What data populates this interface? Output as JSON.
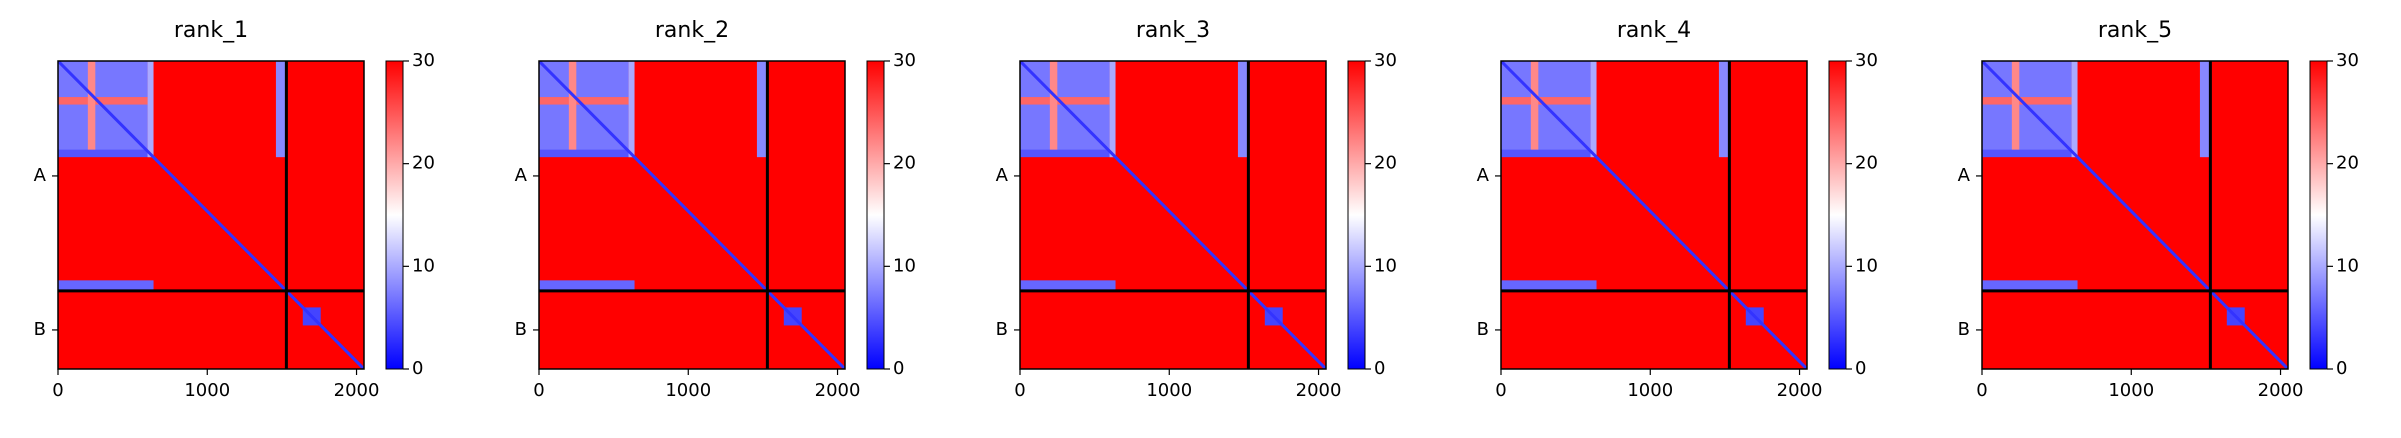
{
  "chart_data": [
    {
      "type": "heatmap",
      "title": "rank_1",
      "xlim": [
        0,
        2050
      ],
      "ylim": [
        2050,
        0
      ],
      "xticks": [
        0,
        1000,
        2000
      ],
      "yticks": [
        {
          "value": 765,
          "label": "A"
        },
        {
          "value": 1790,
          "label": "B"
        }
      ],
      "chain_breaks": [
        1530
      ],
      "colormap": "bwr",
      "clim": [
        0,
        30
      ],
      "cticks": [
        0,
        10,
        20,
        30
      ],
      "background_value": 30,
      "diagonal_value": 3,
      "blocks": [
        {
          "x": [
            0,
            600
          ],
          "y": [
            0,
            600
          ],
          "value": 7
        },
        {
          "x": [
            0,
            600
          ],
          "y": [
            240,
            290
          ],
          "value": 24
        },
        {
          "x": [
            200,
            250
          ],
          "y": [
            0,
            600
          ],
          "value": 22
        },
        {
          "x": [
            0,
            640
          ],
          "y": [
            590,
            640
          ],
          "value": 5
        },
        {
          "x": [
            600,
            640
          ],
          "y": [
            0,
            640
          ],
          "value": 10
        },
        {
          "x": [
            1460,
            1530
          ],
          "y": [
            0,
            640
          ],
          "value": 8
        },
        {
          "x": [
            0,
            640
          ],
          "y": [
            1460,
            1530
          ],
          "value": 6
        },
        {
          "x": [
            1640,
            1760
          ],
          "y": [
            1640,
            1760
          ],
          "value": 4
        }
      ]
    },
    {
      "type": "heatmap",
      "title": "rank_2",
      "xlim": [
        0,
        2050
      ],
      "ylim": [
        2050,
        0
      ],
      "xticks": [
        0,
        1000,
        2000
      ],
      "yticks": [
        {
          "value": 765,
          "label": "A"
        },
        {
          "value": 1790,
          "label": "B"
        }
      ],
      "chain_breaks": [
        1530
      ],
      "colormap": "bwr",
      "clim": [
        0,
        30
      ],
      "cticks": [
        0,
        10,
        20,
        30
      ],
      "background_value": 30,
      "diagonal_value": 3,
      "blocks": [
        {
          "x": [
            0,
            600
          ],
          "y": [
            0,
            600
          ],
          "value": 7
        },
        {
          "x": [
            0,
            600
          ],
          "y": [
            240,
            290
          ],
          "value": 24
        },
        {
          "x": [
            200,
            250
          ],
          "y": [
            0,
            600
          ],
          "value": 22
        },
        {
          "x": [
            0,
            640
          ],
          "y": [
            590,
            640
          ],
          "value": 5
        },
        {
          "x": [
            600,
            640
          ],
          "y": [
            0,
            640
          ],
          "value": 10
        },
        {
          "x": [
            1460,
            1530
          ],
          "y": [
            0,
            640
          ],
          "value": 8
        },
        {
          "x": [
            0,
            640
          ],
          "y": [
            1460,
            1530
          ],
          "value": 6
        },
        {
          "x": [
            1640,
            1760
          ],
          "y": [
            1640,
            1760
          ],
          "value": 4
        }
      ]
    },
    {
      "type": "heatmap",
      "title": "rank_3",
      "xlim": [
        0,
        2050
      ],
      "ylim": [
        2050,
        0
      ],
      "xticks": [
        0,
        1000,
        2000
      ],
      "yticks": [
        {
          "value": 765,
          "label": "A"
        },
        {
          "value": 1790,
          "label": "B"
        }
      ],
      "chain_breaks": [
        1530
      ],
      "colormap": "bwr",
      "clim": [
        0,
        30
      ],
      "cticks": [
        0,
        10,
        20,
        30
      ],
      "background_value": 30,
      "diagonal_value": 3,
      "blocks": [
        {
          "x": [
            0,
            600
          ],
          "y": [
            0,
            600
          ],
          "value": 7
        },
        {
          "x": [
            0,
            600
          ],
          "y": [
            240,
            290
          ],
          "value": 24
        },
        {
          "x": [
            200,
            250
          ],
          "y": [
            0,
            600
          ],
          "value": 22
        },
        {
          "x": [
            0,
            640
          ],
          "y": [
            590,
            640
          ],
          "value": 5
        },
        {
          "x": [
            600,
            640
          ],
          "y": [
            0,
            640
          ],
          "value": 10
        },
        {
          "x": [
            1460,
            1530
          ],
          "y": [
            0,
            640
          ],
          "value": 8
        },
        {
          "x": [
            0,
            640
          ],
          "y": [
            1460,
            1530
          ],
          "value": 6
        },
        {
          "x": [
            1640,
            1760
          ],
          "y": [
            1640,
            1760
          ],
          "value": 4
        }
      ]
    },
    {
      "type": "heatmap",
      "title": "rank_4",
      "xlim": [
        0,
        2050
      ],
      "ylim": [
        2050,
        0
      ],
      "xticks": [
        0,
        1000,
        2000
      ],
      "yticks": [
        {
          "value": 765,
          "label": "A"
        },
        {
          "value": 1790,
          "label": "B"
        }
      ],
      "chain_breaks": [
        1530
      ],
      "colormap": "bwr",
      "clim": [
        0,
        30
      ],
      "cticks": [
        0,
        10,
        20,
        30
      ],
      "background_value": 30,
      "diagonal_value": 3,
      "blocks": [
        {
          "x": [
            0,
            600
          ],
          "y": [
            0,
            600
          ],
          "value": 7
        },
        {
          "x": [
            0,
            600
          ],
          "y": [
            240,
            290
          ],
          "value": 24
        },
        {
          "x": [
            200,
            250
          ],
          "y": [
            0,
            600
          ],
          "value": 22
        },
        {
          "x": [
            0,
            640
          ],
          "y": [
            590,
            640
          ],
          "value": 5
        },
        {
          "x": [
            600,
            640
          ],
          "y": [
            0,
            640
          ],
          "value": 10
        },
        {
          "x": [
            1460,
            1530
          ],
          "y": [
            0,
            640
          ],
          "value": 8
        },
        {
          "x": [
            0,
            640
          ],
          "y": [
            1460,
            1530
          ],
          "value": 6
        },
        {
          "x": [
            1640,
            1760
          ],
          "y": [
            1640,
            1760
          ],
          "value": 4
        }
      ]
    },
    {
      "type": "heatmap",
      "title": "rank_5",
      "xlim": [
        0,
        2050
      ],
      "ylim": [
        2050,
        0
      ],
      "xticks": [
        0,
        1000,
        2000
      ],
      "yticks": [
        {
          "value": 765,
          "label": "A"
        },
        {
          "value": 1790,
          "label": "B"
        }
      ],
      "chain_breaks": [
        1530
      ],
      "colormap": "bwr",
      "clim": [
        0,
        30
      ],
      "cticks": [
        0,
        10,
        20,
        30
      ],
      "background_value": 30,
      "diagonal_value": 3,
      "blocks": [
        {
          "x": [
            0,
            600
          ],
          "y": [
            0,
            600
          ],
          "value": 7
        },
        {
          "x": [
            0,
            600
          ],
          "y": [
            240,
            290
          ],
          "value": 24
        },
        {
          "x": [
            200,
            250
          ],
          "y": [
            0,
            600
          ],
          "value": 22
        },
        {
          "x": [
            0,
            640
          ],
          "y": [
            590,
            640
          ],
          "value": 5
        },
        {
          "x": [
            600,
            640
          ],
          "y": [
            0,
            640
          ],
          "value": 10
        },
        {
          "x": [
            1460,
            1530
          ],
          "y": [
            0,
            640
          ],
          "value": 8
        },
        {
          "x": [
            0,
            640
          ],
          "y": [
            1460,
            1530
          ],
          "value": 6
        },
        {
          "x": [
            1640,
            1760
          ],
          "y": [
            1640,
            1760
          ],
          "value": 4
        }
      ]
    }
  ]
}
